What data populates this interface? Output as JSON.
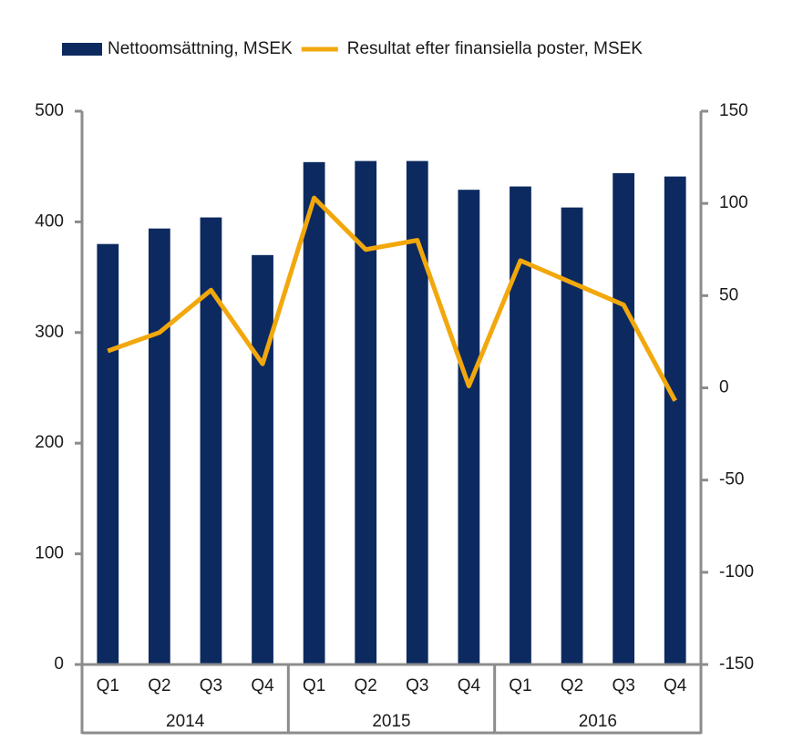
{
  "chart_data": {
    "type": "bar-line",
    "categories": [
      "Q1",
      "Q2",
      "Q3",
      "Q4",
      "Q1",
      "Q2",
      "Q3",
      "Q4",
      "Q1",
      "Q2",
      "Q3",
      "Q4"
    ],
    "groups": [
      "2014",
      "2015",
      "2016"
    ],
    "series": [
      {
        "name": "Nettoomsättning, MSEK",
        "type": "bar",
        "color": "#0c2a60",
        "values": [
          380,
          394,
          404,
          370,
          454,
          455,
          455,
          429,
          432,
          413,
          444,
          441
        ]
      },
      {
        "name": "Resultat efter finansiella poster, MSEK",
        "type": "line",
        "axis": "y2",
        "color": "#f2a80c",
        "values": [
          20,
          30,
          53,
          13,
          103,
          75,
          80,
          1,
          69,
          57,
          45,
          -7
        ]
      }
    ],
    "ylim": [
      0,
      500
    ],
    "yticks": [
      0,
      100,
      200,
      300,
      400,
      500
    ],
    "y2lim": [
      -150,
      150
    ],
    "y2ticks": [
      -150,
      -100,
      -50,
      0,
      50,
      100,
      150
    ],
    "legend": "top"
  }
}
